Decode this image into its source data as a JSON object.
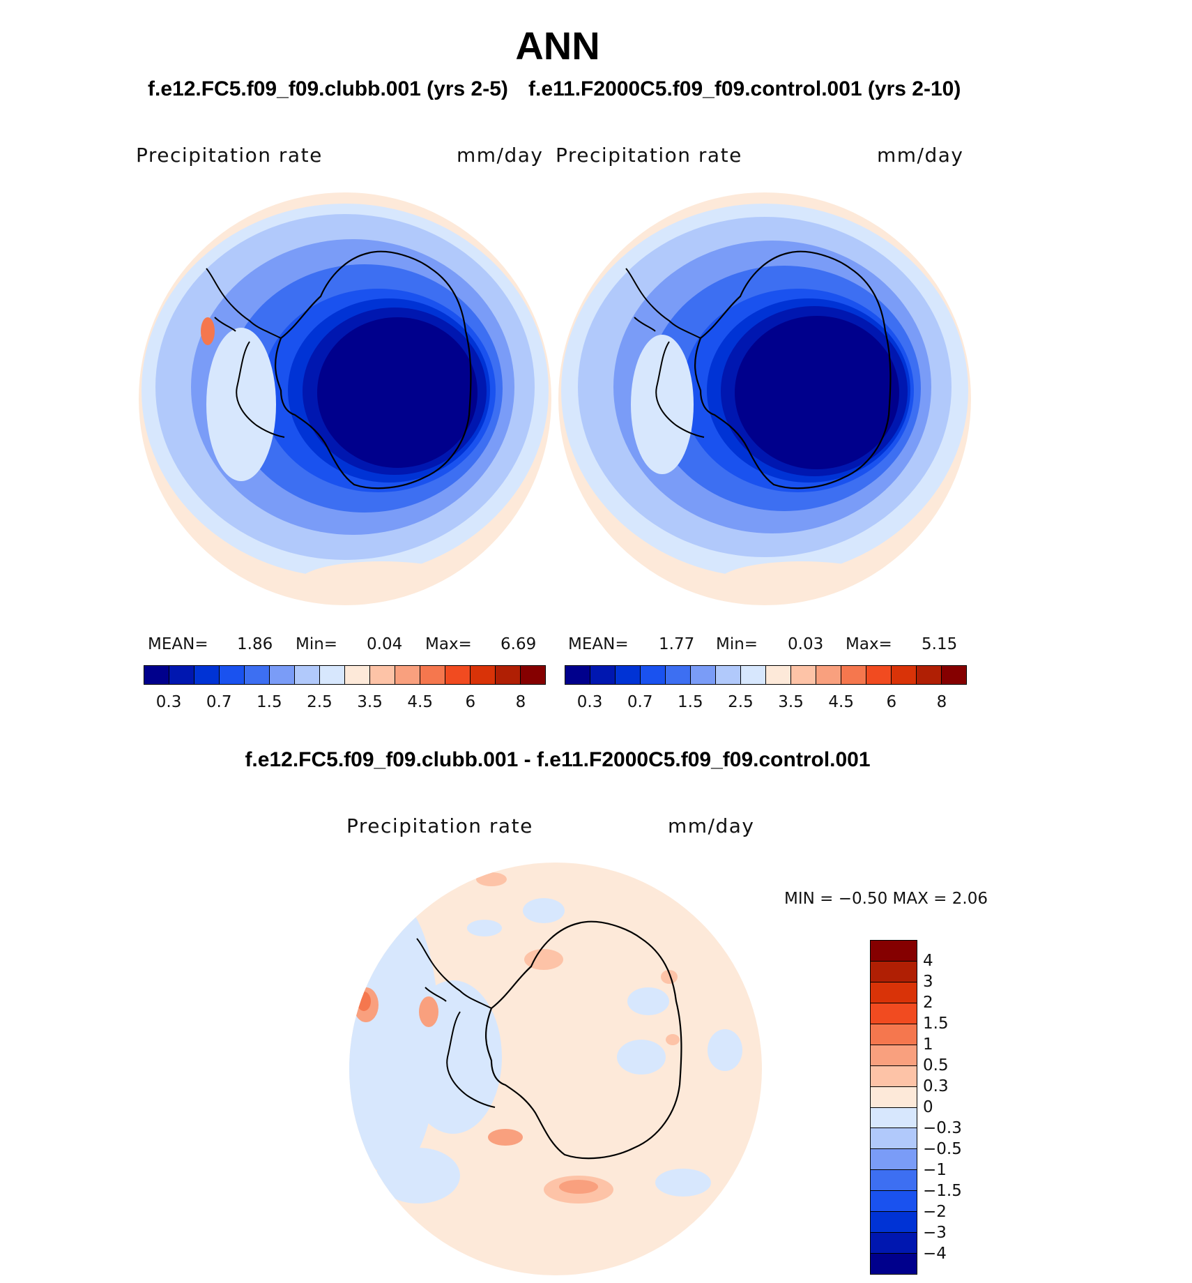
{
  "title": "ANN",
  "case1": {
    "title": "f.e12.FC5.f09_f09.clubb.001 (yrs 2-5)"
  },
  "case2": {
    "title": "f.e11.F2000C5.f09_f09.control.001 (yrs 2-10)"
  },
  "diff": {
    "title": "f.e12.FC5.f09_f09.clubb.001 - f.e11.F2000C5.f09_f09.control.001"
  },
  "panels": [
    {
      "variable": "Precipitation  rate",
      "units": "mm/day",
      "mean_label": "MEAN=",
      "mean": "1.86",
      "min_label": "Min=",
      "min": "0.04",
      "max_label": "Max=",
      "max": "6.69"
    },
    {
      "variable": "Precipitation  rate",
      "units": "mm/day",
      "mean_label": "MEAN=",
      "mean": "1.77",
      "min_label": "Min=",
      "min": "0.03",
      "max_label": "Max=",
      "max": "5.15"
    },
    {
      "variable": "Precipitation  rate",
      "units": "mm/day",
      "minmax": "MIN =   −0.50  MAX =    2.06"
    }
  ],
  "field_colorbar": {
    "ticks": [
      "0.3",
      "0.7",
      "1.5",
      "2.5",
      "3.5",
      "4.5",
      "6",
      "8"
    ],
    "colors": [
      "#00008c",
      "#0017b0",
      "#0033d5",
      "#1a52ef",
      "#3d6ff2",
      "#7a9cf7",
      "#b1c9fb",
      "#d7e7fd",
      "#fde9d9",
      "#fdc3a7",
      "#f9a07e",
      "#f5774e",
      "#f14b20",
      "#d93308",
      "#b01f04",
      "#850000"
    ]
  },
  "diff_colorbar": {
    "ticks": [
      "4",
      "3",
      "2",
      "1.5",
      "1",
      "0.5",
      "0.3",
      "0",
      "−0.3",
      "−0.5",
      "−1",
      "−1.5",
      "−2",
      "−3",
      "−4"
    ],
    "colors": [
      "#850000",
      "#b01f04",
      "#d93308",
      "#f14b20",
      "#f5774e",
      "#f9a07e",
      "#fdc3a7",
      "#fde9d9",
      "#d7e7fd",
      "#b1c9fb",
      "#7a9cf7",
      "#3d6ff2",
      "#1a52ef",
      "#0033d5",
      "#0017b0",
      "#00008c"
    ]
  }
}
